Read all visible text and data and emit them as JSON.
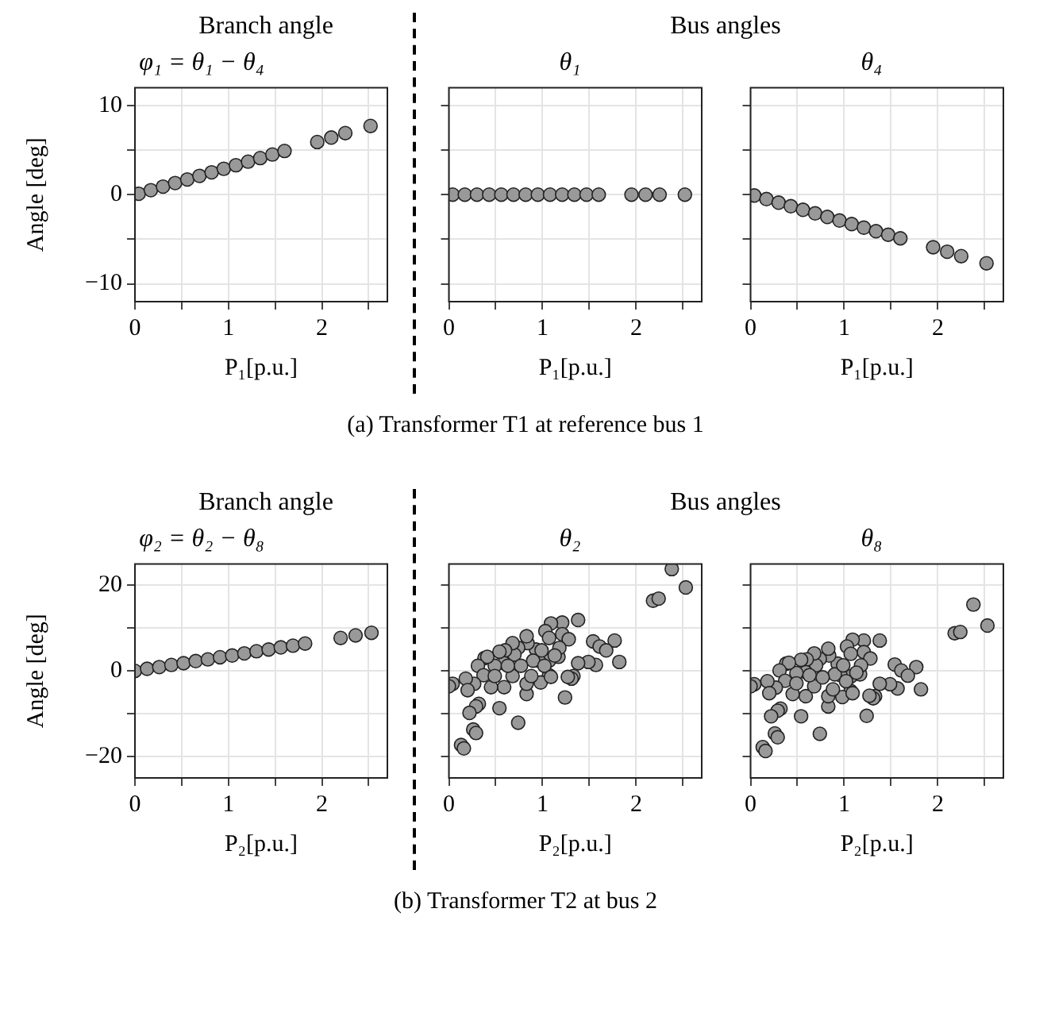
{
  "chart_data": [
    {
      "type": "scatter",
      "subtitle": "Branch angle",
      "title": "φ₁ = θ₁ − θ₄",
      "xlabel": "P₁[p.u.]",
      "ylabel": "Angle [deg]",
      "color": "#999999",
      "marker": "circle",
      "grid": true,
      "legend": false,
      "xlim": [
        0,
        2.7
      ],
      "xticks": [
        0,
        {
          "value": 0.5,
          "label": null
        },
        1,
        {
          "value": 1.5,
          "label": null
        },
        2,
        {
          "value": 2.5,
          "label": null
        }
      ],
      "ylim": [
        -12,
        12
      ],
      "yticks": [
        {
          "value": -10,
          "label": "−10"
        },
        {
          "value": -5,
          "label": null
        },
        0,
        {
          "value": 5,
          "label": null
        },
        10
      ],
      "x": [
        0.04,
        0.17,
        0.3,
        0.43,
        0.56,
        0.69,
        0.82,
        0.95,
        1.08,
        1.21,
        1.34,
        1.47,
        1.6,
        1.95,
        2.1,
        2.25,
        2.52
      ],
      "values": [
        0.1,
        0.5,
        0.9,
        1.3,
        1.7,
        2.1,
        2.5,
        2.9,
        3.3,
        3.7,
        4.1,
        4.5,
        4.9,
        5.9,
        6.4,
        6.9,
        7.7
      ]
    },
    {
      "type": "scatter",
      "subtitle": "Bus angles",
      "title": "θ₁",
      "xlabel": "P₁[p.u.]",
      "color": "#999999",
      "marker": "circle",
      "grid": true,
      "legend": false,
      "tick_labels": "x",
      "annotations": [
        "(a) Transformer T1 at reference bus 1"
      ],
      "xlim": [
        0,
        2.7
      ],
      "xticks": [
        0,
        {
          "value": 0.5,
          "label": null
        },
        1,
        {
          "value": 1.5,
          "label": null
        },
        2,
        {
          "value": 2.5,
          "label": null
        }
      ],
      "ylim": [
        -12,
        12
      ],
      "yticks": [
        {
          "value": -10,
          "label": null
        },
        {
          "value": -5,
          "label": null
        },
        {
          "value": 0,
          "label": null
        },
        {
          "value": 5,
          "label": null
        },
        {
          "value": 10,
          "label": null
        }
      ],
      "x": [
        0.04,
        0.17,
        0.3,
        0.43,
        0.56,
        0.69,
        0.82,
        0.95,
        1.08,
        1.21,
        1.34,
        1.47,
        1.6,
        1.95,
        2.1,
        2.25,
        2.52
      ],
      "values": [
        0,
        0,
        0,
        0,
        0,
        0,
        0,
        0,
        0,
        0,
        0,
        0,
        0,
        0,
        0,
        0,
        0
      ]
    },
    {
      "type": "scatter",
      "title": "θ₄",
      "xlabel": "P₁[p.u.]",
      "color": "#999999",
      "marker": "circle",
      "grid": true,
      "legend": false,
      "tick_labels": "x",
      "xlim": [
        0,
        2.7
      ],
      "xticks": [
        0,
        {
          "value": 0.5,
          "label": null
        },
        1,
        {
          "value": 1.5,
          "label": null
        },
        2,
        {
          "value": 2.5,
          "label": null
        }
      ],
      "ylim": [
        -12,
        12
      ],
      "yticks": [
        {
          "value": -10,
          "label": null
        },
        {
          "value": -5,
          "label": null
        },
        {
          "value": 0,
          "label": null
        },
        {
          "value": 5,
          "label": null
        },
        {
          "value": 10,
          "label": null
        }
      ],
      "x": [
        0.04,
        0.17,
        0.3,
        0.43,
        0.56,
        0.69,
        0.82,
        0.95,
        1.08,
        1.21,
        1.34,
        1.47,
        1.6,
        1.95,
        2.1,
        2.25,
        2.52
      ],
      "values": [
        -0.1,
        -0.5,
        -0.9,
        -1.3,
        -1.7,
        -2.1,
        -2.5,
        -2.9,
        -3.3,
        -3.7,
        -4.1,
        -4.5,
        -4.9,
        -5.9,
        -6.4,
        -6.9,
        -7.7
      ]
    },
    {
      "type": "scatter",
      "subtitle": "Branch angle",
      "title": "φ₂ = θ₂ − θ₈",
      "xlabel": "P₂[p.u.]",
      "ylabel": "Angle [deg]",
      "color": "#999999",
      "marker": "circle",
      "grid": true,
      "legend": false,
      "xlim": [
        0,
        2.7
      ],
      "xticks": [
        0,
        {
          "value": 0.5,
          "label": null
        },
        1,
        {
          "value": 1.5,
          "label": null
        },
        2,
        {
          "value": 2.5,
          "label": null
        }
      ],
      "ylim": [
        -25,
        25
      ],
      "yticks": [
        {
          "value": -20,
          "label": "−20"
        },
        {
          "value": -10,
          "label": null
        },
        0,
        {
          "value": 10,
          "label": null
        },
        20
      ],
      "x": [
        0,
        0.13,
        0.26,
        0.39,
        0.52,
        0.65,
        0.78,
        0.91,
        1.04,
        1.17,
        1.3,
        1.43,
        1.56,
        1.69,
        1.82,
        2.2,
        2.36,
        2.53
      ],
      "values": [
        0,
        0.5,
        0.9,
        1.4,
        1.8,
        2.3,
        2.7,
        3.2,
        3.6,
        4.1,
        4.6,
        5.0,
        5.5,
        5.9,
        6.4,
        7.7,
        8.3,
        8.9
      ]
    },
    {
      "type": "scatter",
      "subtitle": "Bus angles",
      "title": "θ₂",
      "xlabel": "P₂[p.u.]",
      "color": "#999999",
      "marker": "circle",
      "grid": true,
      "legend": false,
      "tick_labels": "x",
      "annotations": [
        "(b) Transformer T2 at bus 2"
      ],
      "xlim": [
        0,
        2.7
      ],
      "xticks": [
        0,
        {
          "value": 0.5,
          "label": null
        },
        1,
        {
          "value": 1.5,
          "label": null
        },
        2,
        {
          "value": 2.5,
          "label": null
        }
      ],
      "ylim": [
        -25,
        25
      ],
      "yticks": [
        {
          "value": -20,
          "label": null
        },
        {
          "value": -10,
          "label": null
        },
        {
          "value": 0,
          "label": null
        },
        {
          "value": 10,
          "label": null
        },
        {
          "value": 20,
          "label": null
        }
      ],
      "x": [
        2.38,
        2.53,
        2.18,
        2.24,
        1.38,
        1.21,
        1.09,
        1.03,
        1.21,
        1.28,
        1.07,
        1.54,
        1.77,
        1.61,
        1.68,
        1.82,
        1.57,
        1.49,
        1.38,
        1.33,
        1.31,
        1.24,
        1.17,
        1.18,
        1.07,
        1.07,
        0.98,
        0.96,
        0.93,
        0.84,
        0.83,
        0.74,
        0.7,
        0.68,
        0.6,
        0.59,
        0.59,
        0.54,
        0.49,
        0.45,
        0.38,
        0.41,
        0.31,
        0.37,
        0.27,
        0.18,
        0.2,
        0.04,
        0,
        0.32,
        0.29,
        0.22,
        0.54,
        0.74,
        0.26,
        0.29,
        0.13,
        0.16,
        0.83,
        0.83,
        0.68,
        0.9,
        0.99,
        0.77,
        0.49,
        0.63,
        1.02,
        1.13,
        0.88,
        1.09,
        1.27
      ],
      "values": [
        23.8,
        19.5,
        16.4,
        16.9,
        11.9,
        11.3,
        11.1,
        9.3,
        8.6,
        7.4,
        7.7,
        6.9,
        7.1,
        5.7,
        4.8,
        2.1,
        1.4,
        2.1,
        1.8,
        -1.2,
        -1.8,
        -6.2,
        3.3,
        5.4,
        2.4,
        -1,
        -2.7,
        2.4,
        5,
        6.5,
        8.1,
        5.4,
        3.8,
        6.5,
        4.8,
        1.8,
        -3.8,
        4.5,
        1.2,
        -3.8,
        3,
        3.3,
        1.2,
        -1,
        -3,
        -1.8,
        -4.5,
        -3,
        -3.6,
        -7.7,
        -8.3,
        -9.8,
        -8.7,
        -12.1,
        -13.7,
        -14.5,
        -17.3,
        -18.1,
        -5.4,
        -3,
        -1.2,
        2.4,
        4.8,
        1.2,
        -1.2,
        1.2,
        1.2,
        3.6,
        -1.2,
        -1.4,
        -1.4
      ]
    },
    {
      "type": "scatter",
      "title": "θ₈",
      "xlabel": "P₂[p.u.]",
      "color": "#999999",
      "marker": "circle",
      "grid": true,
      "legend": false,
      "tick_labels": "x",
      "xlim": [
        0,
        2.7
      ],
      "xticks": [
        0,
        {
          "value": 0.5,
          "label": null
        },
        1,
        {
          "value": 1.5,
          "label": null
        },
        2,
        {
          "value": 2.5,
          "label": null
        }
      ],
      "ylim": [
        -25,
        25
      ],
      "yticks": [
        {
          "value": -20,
          "label": null
        },
        {
          "value": -10,
          "label": null
        },
        {
          "value": 0,
          "label": null
        },
        {
          "value": 10,
          "label": null
        },
        {
          "value": 20,
          "label": null
        }
      ],
      "x": [
        2.38,
        2.53,
        2.18,
        2.24,
        1.38,
        1.21,
        1.09,
        1.03,
        1.21,
        1.28,
        1.07,
        1.54,
        1.77,
        1.61,
        1.68,
        1.82,
        1.57,
        1.49,
        1.38,
        1.33,
        1.31,
        1.24,
        1.17,
        1.18,
        1.07,
        1.07,
        0.98,
        0.96,
        0.93,
        0.84,
        0.83,
        0.74,
        0.7,
        0.68,
        0.6,
        0.59,
        0.59,
        0.54,
        0.49,
        0.45,
        0.38,
        0.41,
        0.31,
        0.37,
        0.27,
        0.18,
        0.2,
        0.04,
        0,
        0.32,
        0.29,
        0.22,
        0.54,
        0.74,
        0.26,
        0.29,
        0.13,
        0.16,
        0.83,
        0.83,
        0.68,
        0.9,
        0.99,
        0.77,
        0.49,
        0.63,
        1.02,
        1.13,
        0.88,
        1.09,
        1.27
      ],
      "values": [
        15.5,
        10.6,
        8.8,
        9.1,
        7.1,
        7.1,
        7.3,
        5.7,
        4.4,
        2.9,
        4,
        1.5,
        0.9,
        0.1,
        -1.1,
        -4.3,
        -4.1,
        -3.1,
        -3,
        -5.9,
        -6.4,
        -10.5,
        -0.8,
        1.3,
        -1.3,
        -4.7,
        -6.1,
        -1,
        1.7,
        3.6,
        5.2,
        2.8,
        1.3,
        4.1,
        2.7,
        -0.3,
        -5.9,
        2.6,
        -0.5,
        -5.4,
        1.7,
        1.9,
        0.1,
        -2.3,
        -3.9,
        -2.4,
        -5.2,
        -3.1,
        -3.6,
        -8.8,
        -9.3,
        -10.6,
        -10.6,
        -14.7,
        -14.6,
        -15.5,
        -17.8,
        -18.7,
        -8.3,
        -5.9,
        -3.6,
        -0.8,
        1.3,
        -1.5,
        -2.9,
        -1,
        -2.4,
        -0.4,
        -4.3,
        -5.2,
        -5.8
      ]
    }
  ]
}
